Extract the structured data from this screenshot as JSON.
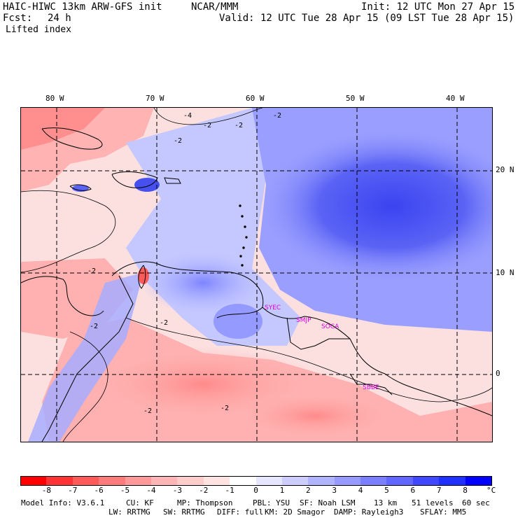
{
  "header": {
    "model": "HAIC-HIWC 13km ARW-GFS init",
    "org": "NCAR/MMM",
    "init": "Init: 12 UTC Mon 27 Apr 15",
    "fcst_label": "Fcst:",
    "fcst_value": "24 h",
    "valid": "Valid: 12 UTC Tue 28 Apr 15 (09 LST Tue 28 Apr 15)",
    "field": "Lifted index"
  },
  "axes": {
    "lon_labels": [
      "80 W",
      "70 W",
      "60 W",
      "50 W",
      "40 W"
    ],
    "lat_labels": [
      "20 N",
      "10 N",
      "0"
    ]
  },
  "stations": [
    "SYEC",
    "SMJP",
    "SOCA",
    "SBBE"
  ],
  "contour_labels": [
    "-4",
    "-2",
    "-2",
    "-2",
    "-2",
    "-2",
    "-2",
    "-2",
    "-2",
    "-2"
  ],
  "colorbar": {
    "unit": "°C",
    "labels": [
      "-8",
      "-7",
      "-6",
      "-5",
      "-4",
      "-3",
      "-2",
      "-1",
      "0",
      "1",
      "2",
      "3",
      "4",
      "5",
      "6",
      "7",
      "8"
    ],
    "colors": [
      "#ff0000",
      "#ff3333",
      "#ff5a5a",
      "#ff7a7a",
      "#ff9999",
      "#ffb5b5",
      "#ffcccc",
      "#ffe3e3",
      "#ffffff",
      "#e6e6ff",
      "#ccccff",
      "#b0b3ff",
      "#9699ff",
      "#7a7fff",
      "#6066ff",
      "#4048ff",
      "#2030ff",
      "#0000ff"
    ]
  },
  "footer": {
    "line1": [
      "Model Info: V3.6.1",
      "CU: KF",
      "MP: Thompson",
      "PBL: YSU",
      "SF: Noah LSM",
      "13 km",
      "51 levels",
      "60 sec"
    ],
    "line2": [
      "LW: RRTMG",
      "SW: RRTMG",
      "DIFF: full",
      "KM: 2D Smagor",
      "DAMP: Rayleigh3",
      "SFLAY: MM5"
    ]
  }
}
